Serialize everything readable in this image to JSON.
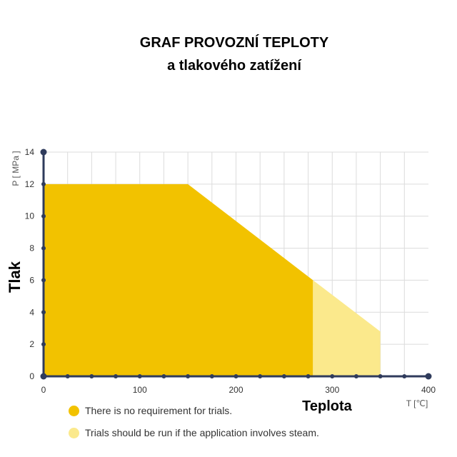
{
  "title_line1": "GRAF  PROVOZNÍ TEPLOTY",
  "title_line2": "a tlakového zatížení",
  "chart_data": {
    "type": "area",
    "ylabel": "Tlak",
    "yunit": "P [ MPa ]",
    "xlabel": "Teplota",
    "xunit": "T [℃]",
    "xlim": [
      0,
      400
    ],
    "ylim": [
      0,
      14
    ],
    "xticks": [
      0,
      100,
      200,
      300,
      400
    ],
    "yticks": [
      0,
      2,
      4,
      6,
      8,
      10,
      12,
      14
    ],
    "grid": true,
    "series": [
      {
        "name": "There is no requirement for trials.",
        "color": "#f2c200",
        "points": [
          [
            0,
            0
          ],
          [
            0,
            12
          ],
          [
            150,
            12
          ],
          [
            280,
            6
          ],
          [
            280,
            0
          ]
        ]
      },
      {
        "name": "Trials should be run if the application involves steam.",
        "color": "#fbe98c",
        "points": [
          [
            280,
            0
          ],
          [
            280,
            6
          ],
          [
            350,
            2.8
          ],
          [
            350,
            0
          ]
        ]
      }
    ],
    "legend_position": "bottom-left"
  }
}
